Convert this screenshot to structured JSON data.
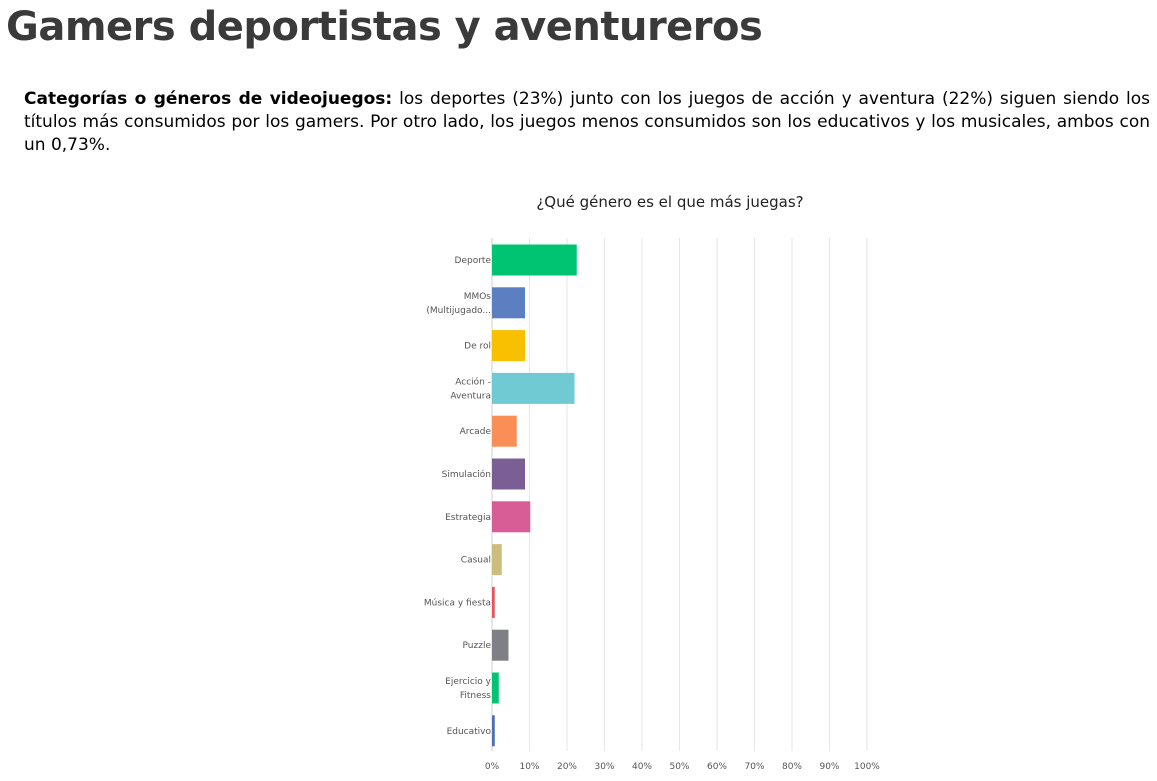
{
  "page": {
    "title": "Gamers deportistas y aventureros",
    "description_lead": "Categorías o géneros de videojuegos:",
    "description_text": " los deportes (23%) junto con los juegos de acción y aventura (22%) siguen siendo los títulos más consumidos por los gamers. Por otro lado, los juegos menos consumidos son los educativos y los musicales, ambos con un 0,73%."
  },
  "chart_data": {
    "type": "bar",
    "orientation": "horizontal",
    "title": "¿Qué género es el que más juegas?",
    "categories": [
      [
        "Deporte"
      ],
      [
        "MMOs",
        "(Multijugado..."
      ],
      [
        "De rol"
      ],
      [
        "Acción -",
        "Aventura"
      ],
      [
        "Arcade"
      ],
      [
        "Simulación"
      ],
      [
        "Estrategia"
      ],
      [
        "Casual"
      ],
      [
        "Música y fiesta"
      ],
      [
        "Puzzle"
      ],
      [
        "Ejercicio y",
        "Fitness"
      ],
      [
        "Educativo"
      ]
    ],
    "values": [
      22.6,
      8.8,
      8.8,
      22.0,
      6.6,
      8.8,
      10.2,
      2.6,
      0.73,
      4.4,
      1.8,
      0.73
    ],
    "colors": [
      "#00c472",
      "#5b7fc0",
      "#f8c000",
      "#6fcad4",
      "#f98e57",
      "#7b5e93",
      "#d85c96",
      "#cbbd7e",
      "#e5555d",
      "#7f8086",
      "#00c472",
      "#4a70b5"
    ],
    "xlim": [
      0,
      100
    ],
    "xticks": [
      0,
      10,
      20,
      30,
      40,
      50,
      60,
      70,
      80,
      90,
      100
    ],
    "xtick_labels": [
      "0%",
      "10%",
      "20%",
      "30%",
      "40%",
      "50%",
      "60%",
      "70%",
      "80%",
      "90%",
      "100%"
    ],
    "grid": true,
    "xlabel": "",
    "ylabel": ""
  }
}
